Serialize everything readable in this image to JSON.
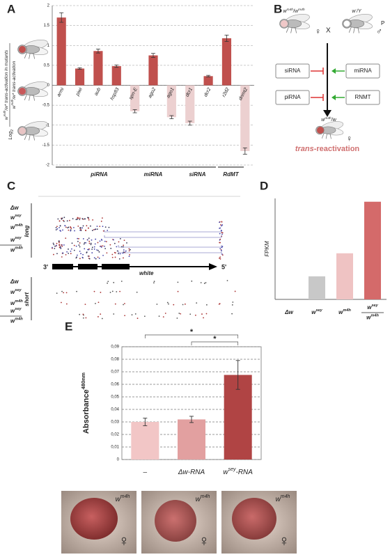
{
  "panel_labels": [
    "A",
    "B",
    "C",
    "D",
    "E"
  ],
  "chart_data": [
    {
      "type": "bar",
      "y_label_log": [
        "Log",
        "2"
      ],
      "y_label": [
        [
          "w",
          "m4h",
          "/w* trans-activation in mutants"
        ],
        [
          "w",
          "m4h",
          "/w* trans-activation"
        ]
      ],
      "categories": [
        "armi",
        "piwi",
        "aub",
        "hsp83",
        "spn-E",
        "ago2",
        "ago1",
        "dcr1",
        "dcr2",
        "r2d2",
        "dnmt2"
      ],
      "values": [
        1.7,
        0.42,
        0.86,
        0.48,
        -0.65,
        0.75,
        -0.8,
        -0.95,
        0.23,
        1.18,
        -1.65
      ],
      "errors": [
        0.12,
        0.02,
        0.05,
        0.03,
        0.04,
        0.05,
        0.04,
        0.05,
        0.02,
        0.08,
        0.08
      ],
      "colors": [
        "#c0504d",
        "#c0504d",
        "#c0504d",
        "#c0504d",
        "#ecd0d0",
        "#c0504d",
        "#ecd0d0",
        "#ecd0d0",
        "#c0504d",
        "#c0504d",
        "#ecd0d0"
      ],
      "ylim": [
        -2,
        2
      ],
      "yticks": [
        -2,
        -1.5,
        -1,
        -0.5,
        0,
        0.5,
        1,
        1.5,
        2
      ],
      "grid": true,
      "groups": [
        "piRNA",
        "miRNA",
        "siRNA",
        "RdMT"
      ]
    },
    {
      "type": "bar",
      "y_label": "FPKM",
      "categories": [
        [
          "Δw"
        ],
        [
          "w",
          "sey"
        ],
        [
          "w",
          "m4h"
        ],
        {
          "num": [
            "w",
            "sey"
          ],
          "den": [
            "w",
            "m4h"
          ]
        }
      ],
      "values": [
        0,
        2.1,
        4.2,
        8.9
      ],
      "colors": [
        "#999999",
        "#c8c8c8",
        "#efc3c3",
        "#d46a6a"
      ],
      "ylim": [
        0,
        9.2
      ]
    },
    {
      "type": "bar",
      "y_label": [
        "Absorbance",
        "480nm"
      ],
      "categories": [
        [
          "–"
        ],
        [
          "Δw-RNA"
        ],
        [
          "w",
          "sey",
          "-RNA"
        ]
      ],
      "values": [
        0.03,
        0.032,
        0.0675
      ],
      "errors": [
        0.003,
        0.0025,
        0.0115
      ],
      "colors": [
        "#f2c6c6",
        "#e2a0a0",
        "#b04444"
      ],
      "ylim": [
        0,
        0.09
      ],
      "yticks": [
        {
          "value": 0,
          "label": "0"
        },
        {
          "value": 0.01,
          "label": "0,01"
        },
        {
          "value": 0.02,
          "label": "0,02"
        },
        {
          "value": 0.03,
          "label": "0,03"
        },
        {
          "value": 0.04,
          "label": "0,04"
        },
        {
          "value": 0.05,
          "label": "0,05"
        },
        {
          "value": 0.06,
          "label": "0,06"
        },
        {
          "value": 0.07,
          "label": "0,07"
        },
        {
          "value": 0.08,
          "label": "0,08"
        },
        {
          "value": 0.09,
          "label": "0,09"
        }
      ],
      "grid": true,
      "significance": [
        "*",
        "*"
      ]
    }
  ],
  "panel_b": {
    "parents": [
      [
        "w",
        "m4h",
        "/w",
        "m4h"
      ],
      [
        "w",
        "-",
        "/Y"
      ]
    ],
    "cross": "X",
    "generation": "P",
    "female": "♀",
    "male": "♂",
    "boxes": [
      "siRNA",
      "piRNA",
      "miRNA",
      "RNMT"
    ],
    "offspring": [
      "w",
      "m4h",
      "/w"
    ],
    "caption": [
      "trans",
      "-reactivation"
    ]
  },
  "panel_c": {
    "tracks": [
      [
        "Δw"
      ],
      [
        "w",
        "sey"
      ],
      [
        "w",
        "m4h"
      ],
      {
        "num": [
          "w",
          "sey"
        ],
        "den": [
          "w",
          "m4h"
        ]
      }
    ],
    "sections": [
      "long",
      "short"
    ],
    "gene": [
      "3'",
      "white",
      "5'"
    ]
  },
  "panel_e_photos": {
    "genotype": [
      "w",
      "m4h"
    ],
    "sex": "♀"
  }
}
